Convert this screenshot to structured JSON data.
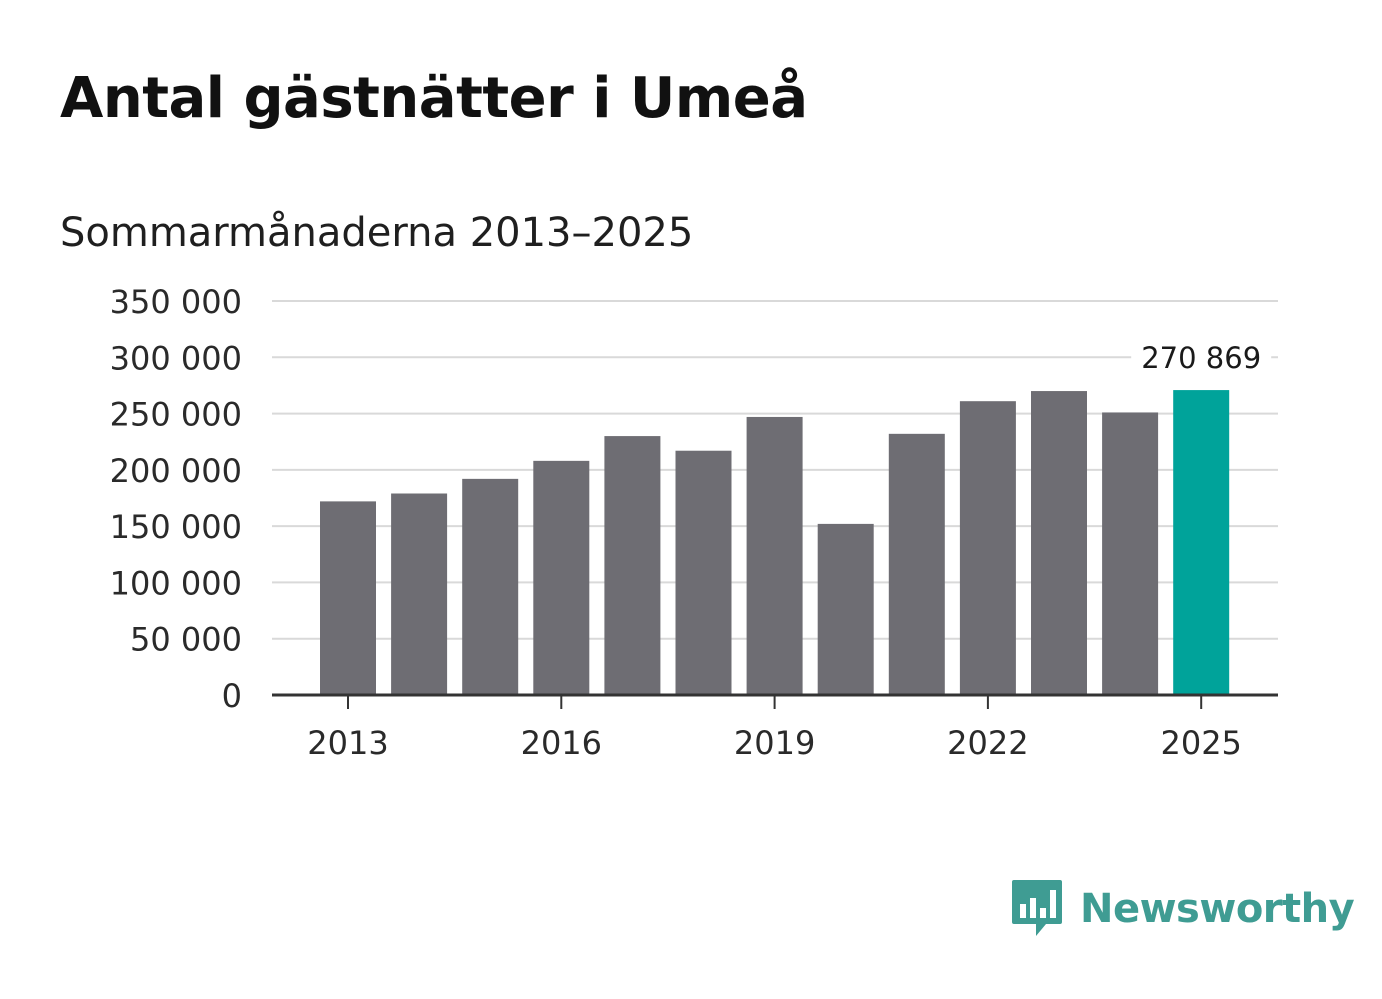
{
  "header": {
    "title": "Antal gästnätter i Umeå",
    "subtitle": "Sommarmånaderna 2013–2025"
  },
  "chart_data": {
    "type": "bar",
    "categories": [
      "2013",
      "2014",
      "2015",
      "2016",
      "2017",
      "2018",
      "2019",
      "2020",
      "2021",
      "2022",
      "2023",
      "2024",
      "2025"
    ],
    "values": [
      172000,
      179000,
      192000,
      208000,
      230000,
      217000,
      247000,
      152000,
      232000,
      261000,
      270000,
      251000,
      270869
    ],
    "ylim": [
      0,
      350000
    ],
    "yticks": [
      0,
      50000,
      100000,
      150000,
      200000,
      250000,
      300000,
      350000
    ],
    "ytick_labels": [
      "0",
      "50 000",
      "100 000",
      "150 000",
      "200 000",
      "250 000",
      "300 000",
      "350 000"
    ],
    "xtick_labels": [
      "2013",
      "2016",
      "2019",
      "2022",
      "2025"
    ],
    "highlight": {
      "category": "2025",
      "label": "270 869"
    },
    "grid": true,
    "colors": {
      "bar": "#6e6d73",
      "highlight": "#00a39a",
      "grid": "#d9d9d9",
      "axis": "#333333"
    }
  },
  "brand": {
    "name": "Newsworthy",
    "icon": "newsworthy-logo-icon",
    "color": "#3f9c93"
  }
}
